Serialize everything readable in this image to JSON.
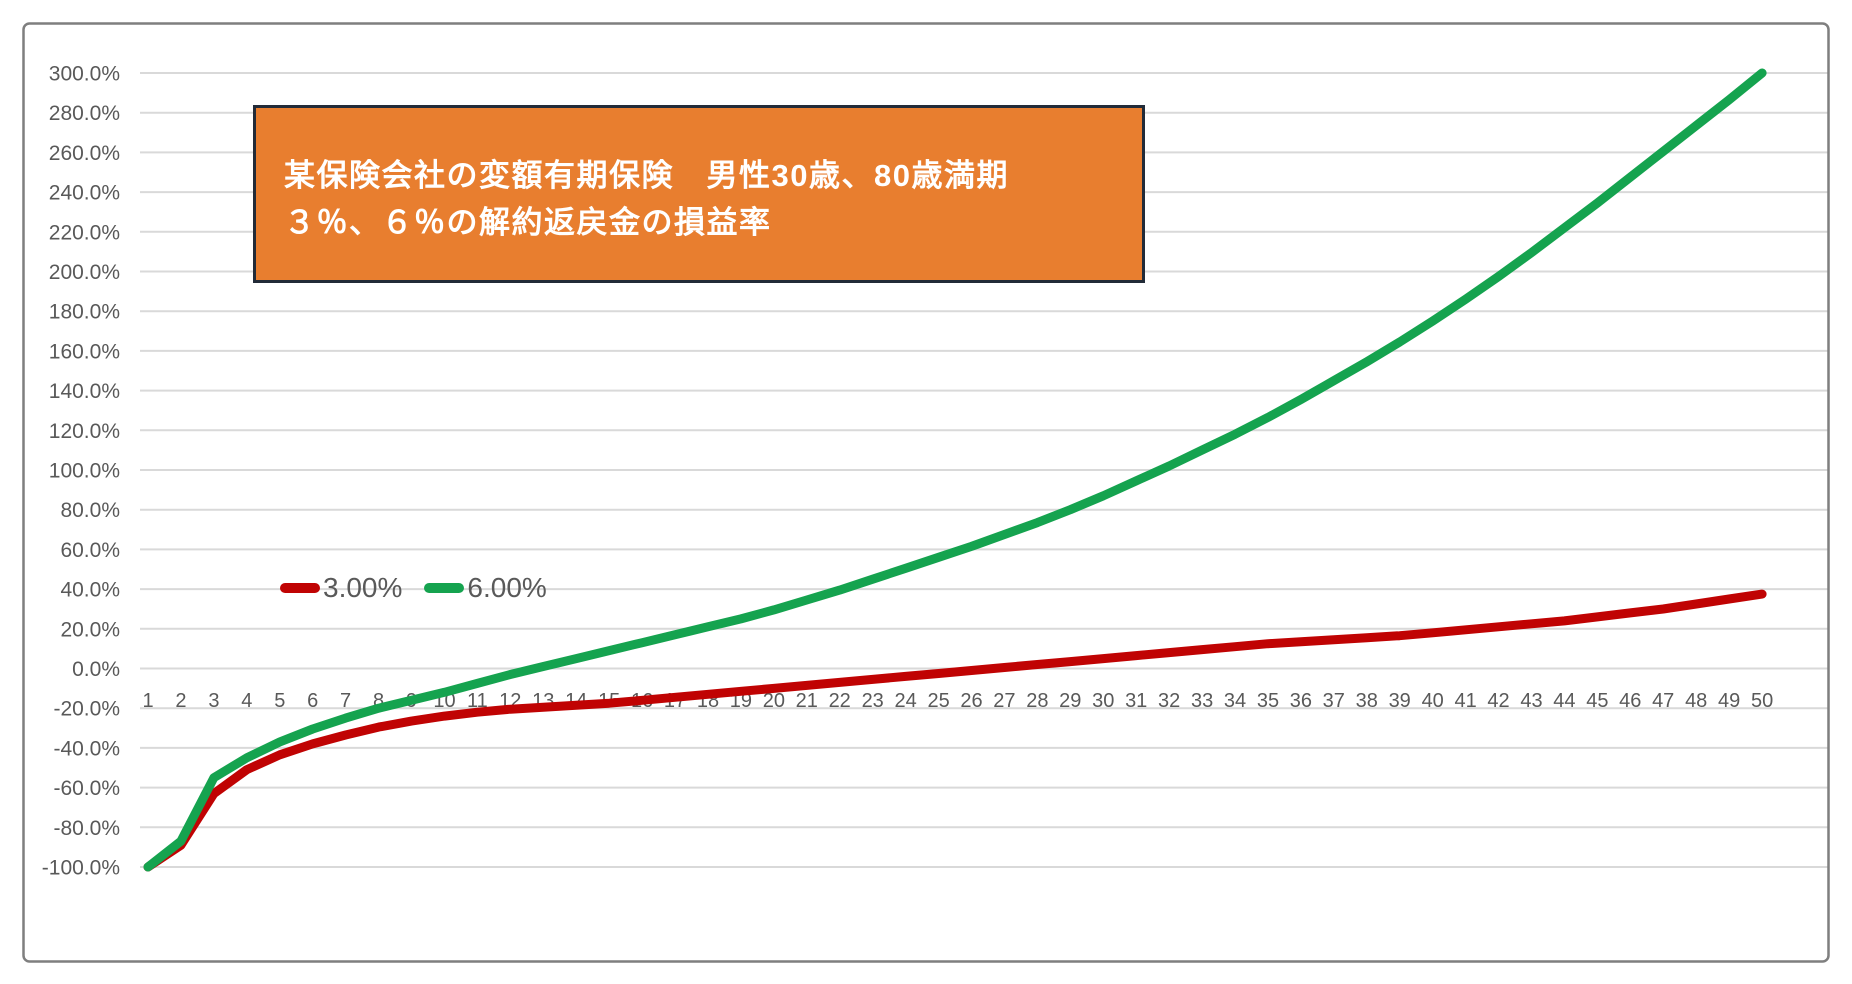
{
  "chart": {
    "title_line1": "某保険会社の変額有期保険　男性30歳、80歳満期",
    "title_line2": "３％、６％の解約返戻金の損益率",
    "title_box": {
      "fill": "#E87E2F",
      "border": "#222B38",
      "text_color": "#FFFFFF"
    }
  },
  "chart_data": {
    "type": "line",
    "title": "某保険会社の変額有期保険 男性30歳、80歳満期 ３％、６％の解約返戻金の損益率",
    "xlabel": "",
    "ylabel": "",
    "x": [
      1,
      2,
      3,
      4,
      5,
      6,
      7,
      8,
      9,
      10,
      11,
      12,
      13,
      14,
      15,
      16,
      17,
      18,
      19,
      20,
      21,
      22,
      23,
      24,
      25,
      26,
      27,
      28,
      29,
      30,
      31,
      32,
      33,
      34,
      35,
      36,
      37,
      38,
      39,
      40,
      41,
      42,
      43,
      44,
      45,
      46,
      47,
      48,
      49,
      50
    ],
    "series": [
      {
        "key": "series-3pct",
        "name": "3.00%",
        "color": "#C00303",
        "values": [
          -100,
          -89,
          -63,
          -51,
          -43.5,
          -38,
          -33.5,
          -29.5,
          -26.5,
          -24,
          -22,
          -20.5,
          -19.5,
          -18.5,
          -17.5,
          -16,
          -14.5,
          -13,
          -11.5,
          -10,
          -8.5,
          -7,
          -5.5,
          -4,
          -2.5,
          -1,
          0.5,
          2,
          3.5,
          5,
          6.5,
          8,
          9.5,
          11,
          12.5,
          13.5,
          14.5,
          15.5,
          16.5,
          18,
          19.5,
          21,
          22.5,
          24,
          26,
          28,
          30,
          32.5,
          35,
          37.5
        ]
      },
      {
        "key": "series-6pct",
        "name": "6.00%",
        "color": "#15A34F",
        "values": [
          -100,
          -87,
          -55,
          -45,
          -37,
          -30.5,
          -25,
          -20,
          -16,
          -12,
          -7.5,
          -3,
          1,
          5,
          9,
          13,
          17,
          21,
          25,
          29.5,
          34.5,
          39.5,
          45,
          50.5,
          56,
          61.5,
          67.5,
          73.5,
          80,
          87,
          94.5,
          102,
          110,
          118,
          126.5,
          135.5,
          145,
          154.5,
          164.5,
          175,
          186,
          197.5,
          209.5,
          222,
          234.5,
          247.5,
          260.5,
          273.5,
          286.5,
          300
        ]
      }
    ],
    "ylim": [
      -100,
      300
    ],
    "ytick_values": [
      300,
      280,
      260,
      240,
      220,
      200,
      180,
      160,
      140,
      120,
      100,
      80,
      60,
      40,
      20,
      0,
      -20,
      -40,
      -60,
      -80,
      -100
    ],
    "ytick_labels": [
      "300.0%",
      "280.0%",
      "260.0%",
      "240.0%",
      "220.0%",
      "200.0%",
      "180.0%",
      "160.0%",
      "140.0%",
      "120.0%",
      "100.0%",
      "80.0%",
      "60.0%",
      "40.0%",
      "20.0%",
      "0.0%",
      "-20.0%",
      "-40.0%",
      "-60.0%",
      "-80.0%",
      "-100.0%"
    ],
    "grid": true,
    "legend_position": "inside-left-middle",
    "background": "#FFFFFF",
    "gridline_color": "#D9D9D9",
    "axis_text_color": "#595959",
    "outer_border_color": "#7F7F7F"
  }
}
